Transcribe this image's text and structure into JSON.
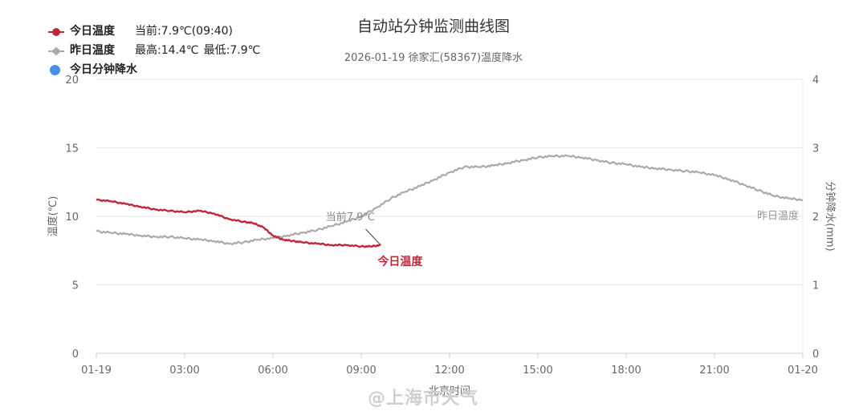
{
  "title": "自动站分钟监测曲线图",
  "subtitle": "2026-01-19 徐家汇(58367)温度降水",
  "legend": {
    "today": {
      "name": "今日温度",
      "info_prefix": "当前:",
      "info_value": "7.9℃(09:40)",
      "color": "#c0283a"
    },
    "yesterday": {
      "name": "昨日温度",
      "max": "最高:14.4℃",
      "min": "最低:7.9℃",
      "color": "#aaaaaa"
    },
    "precip": {
      "name": "今日分钟降水",
      "color": "#4a90e2"
    }
  },
  "watermark": "@上海市天气",
  "chart_data": {
    "type": "line",
    "title": "自动站分钟监测曲线图",
    "subtitle": "2026-01-19 徐家汇(58367)温度降水",
    "xlabel": "北京时间",
    "ylabel": "温度(℃)",
    "y2label": "分钟降水(mm)",
    "x_ticks": [
      "01-19",
      "03:00",
      "06:00",
      "09:00",
      "12:00",
      "15:00",
      "18:00",
      "21:00",
      "01-20"
    ],
    "xlim_hours": [
      0,
      24
    ],
    "ylim": [
      0,
      20
    ],
    "y_ticks": [
      0,
      5,
      10,
      15,
      20
    ],
    "y2lim": [
      0,
      4
    ],
    "y2_ticks": [
      0,
      1,
      2,
      3,
      4
    ],
    "grid": true,
    "annotations": [
      {
        "text": "当前7.9℃",
        "x_time": "09:40",
        "y": 7.9
      },
      {
        "text": "今日温度",
        "series": "今日温度"
      },
      {
        "text": "昨日温度",
        "series": "昨日温度"
      }
    ],
    "series": [
      {
        "name": "今日温度",
        "color": "#c0283a",
        "x_time": [
          "00:00",
          "00:30",
          "01:00",
          "01:30",
          "02:00",
          "02:30",
          "03:00",
          "03:30",
          "04:00",
          "04:30",
          "05:00",
          "05:20",
          "05:40",
          "06:00",
          "06:20",
          "06:40",
          "07:00",
          "07:30",
          "08:00",
          "08:30",
          "09:00",
          "09:20",
          "09:40"
        ],
        "values": [
          11.2,
          11.1,
          10.9,
          10.7,
          10.5,
          10.4,
          10.3,
          10.4,
          10.2,
          9.8,
          9.6,
          9.5,
          9.2,
          8.6,
          8.3,
          8.2,
          8.1,
          8.0,
          7.9,
          7.9,
          7.8,
          7.8,
          7.9
        ]
      },
      {
        "name": "昨日温度",
        "color": "#aaaaaa",
        "x_time": [
          "00:00",
          "00:30",
          "01:00",
          "01:30",
          "02:00",
          "02:30",
          "03:00",
          "03:30",
          "04:00",
          "04:30",
          "05:00",
          "05:30",
          "06:00",
          "06:30",
          "07:00",
          "07:30",
          "08:00",
          "08:30",
          "09:00",
          "09:30",
          "10:00",
          "10:30",
          "11:00",
          "11:30",
          "12:00",
          "12:30",
          "13:00",
          "13:30",
          "14:00",
          "14:30",
          "15:00",
          "15:30",
          "16:00",
          "16:30",
          "17:00",
          "17:30",
          "18:00",
          "18:30",
          "19:00",
          "19:30",
          "20:00",
          "20:30",
          "21:00",
          "21:30",
          "22:00",
          "22:30",
          "23:00",
          "23:30",
          "24:00"
        ],
        "values": [
          8.9,
          8.8,
          8.7,
          8.6,
          8.5,
          8.5,
          8.4,
          8.3,
          8.2,
          8.0,
          8.1,
          8.3,
          8.4,
          8.6,
          8.8,
          9.0,
          9.3,
          9.6,
          10.0,
          10.6,
          11.3,
          11.8,
          12.2,
          12.7,
          13.2,
          13.6,
          13.6,
          13.7,
          13.9,
          14.1,
          14.3,
          14.4,
          14.4,
          14.3,
          14.1,
          13.9,
          13.8,
          13.6,
          13.5,
          13.4,
          13.3,
          13.2,
          13.0,
          12.7,
          12.3,
          11.9,
          11.5,
          11.3,
          11.2
        ]
      },
      {
        "name": "今日分钟降水",
        "color": "#4a90e2",
        "x_time": [],
        "values": []
      }
    ]
  }
}
